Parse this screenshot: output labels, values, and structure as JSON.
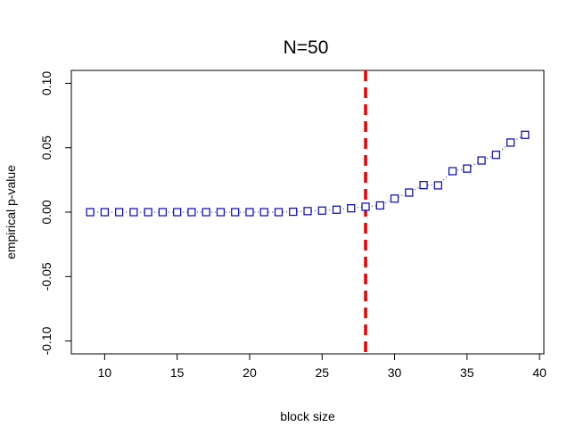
{
  "chart_data": {
    "type": "scatter",
    "title": "N=50",
    "xlabel": "block size",
    "ylabel": "empirical p-value",
    "xlim": [
      7.7,
      40.3
    ],
    "ylim": [
      -0.11,
      0.11
    ],
    "xticks": [
      10,
      15,
      20,
      25,
      30,
      35,
      40
    ],
    "xtick_labels": [
      "10",
      "15",
      "20",
      "25",
      "30",
      "35",
      "40"
    ],
    "yticks": [
      -0.1,
      -0.05,
      0.0,
      0.05,
      0.1
    ],
    "ytick_labels": [
      "-0.10",
      "-0.05",
      "0.00",
      "0.05",
      "0.10"
    ],
    "grid": false,
    "series": [
      {
        "marker": "open-square",
        "line_style": "dotted",
        "color": "#0000cd",
        "x": [
          9,
          10,
          11,
          12,
          13,
          14,
          15,
          16,
          17,
          18,
          19,
          20,
          21,
          22,
          23,
          24,
          25,
          26,
          27,
          28,
          29,
          30,
          31,
          32,
          33,
          34,
          35,
          36,
          37,
          38,
          39
        ],
        "y": [
          0,
          0,
          0,
          0,
          0,
          0,
          0,
          0,
          0,
          0,
          0,
          0,
          0,
          0,
          0.0003,
          0.0008,
          0.0012,
          0.0019,
          0.003,
          0.0042,
          0.0052,
          0.0105,
          0.0152,
          0.021,
          0.0208,
          0.0318,
          0.0338,
          0.0401,
          0.0445,
          0.054,
          0.06
        ]
      }
    ],
    "reference_lines": [
      {
        "orientation": "vertical",
        "x": 28,
        "style": "dashed",
        "color": "#ee0000"
      }
    ]
  }
}
